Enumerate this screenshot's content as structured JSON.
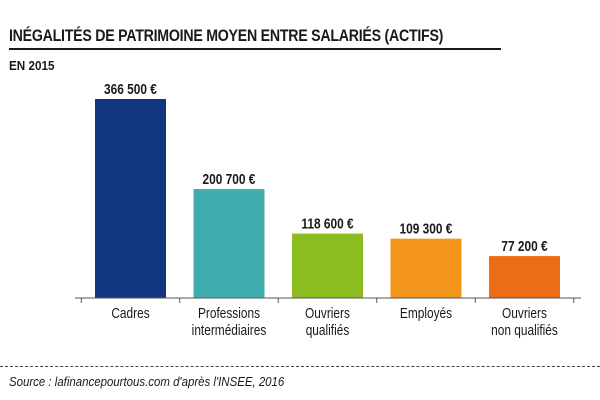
{
  "header": {
    "title": "INÉGALITÉS DE PATRIMOINE MOYEN ENTRE SALARIÉS (ACTIFS)",
    "subtitle": "EN 2015"
  },
  "footer": {
    "source": "Source : lafinancepourtous.com d'après l'INSEE, 2016"
  },
  "chart_data": {
    "type": "bar",
    "categories": [
      [
        "Cadres"
      ],
      [
        "Professions",
        "intermédiaires"
      ],
      [
        "Ouvriers",
        "qualifiés"
      ],
      [
        "Employés"
      ],
      [
        "Ouvriers",
        "non qualifiés"
      ]
    ],
    "values": [
      366500,
      200700,
      118600,
      109300,
      77200
    ],
    "value_labels": [
      "366 500 €",
      "200 700 €",
      "118 600 €",
      "109 300 €",
      "77 200 €"
    ],
    "colors": [
      "#12367f",
      "#3fadae",
      "#8cbd1f",
      "#f4961c",
      "#ec6d16"
    ],
    "ylim": [
      0,
      366500
    ],
    "grid": false,
    "legend": false
  }
}
